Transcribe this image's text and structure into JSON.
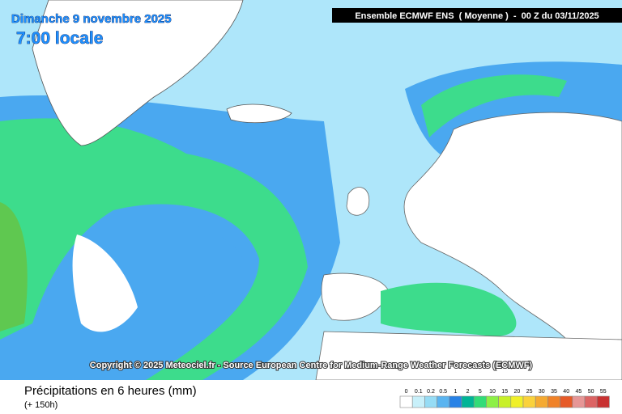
{
  "header": {
    "date": "Dimanche 9 novembre 2025",
    "time": "7:00 locale",
    "model": "Ensemble ECMWF ENS  ( Moyenne )  -  00 Z du 03/11/2025"
  },
  "copyright": "Copyright © 2025 Meteociel.fr - Source European Centre for Medium-Range Weather Forecasts (ECMWF)",
  "footer": {
    "title": "Précipitations en 6 heures (mm)",
    "lead": "(+ 150h)"
  },
  "legend": {
    "labels": [
      0,
      0.1,
      0.2,
      0.5,
      1,
      2,
      5,
      10,
      15,
      20,
      25,
      30,
      35,
      40,
      45,
      50,
      55
    ],
    "colors": [
      "#ffffff",
      "#c8f0fa",
      "#96dcf5",
      "#5ab4f0",
      "#2882e6",
      "#00b496",
      "#32dc78",
      "#8cf046",
      "#c8f028",
      "#f0f028",
      "#fad23c",
      "#f5aa32",
      "#f08228",
      "#e65a28",
      "#e69696",
      "#dc6464",
      "#c83232"
    ]
  }
}
